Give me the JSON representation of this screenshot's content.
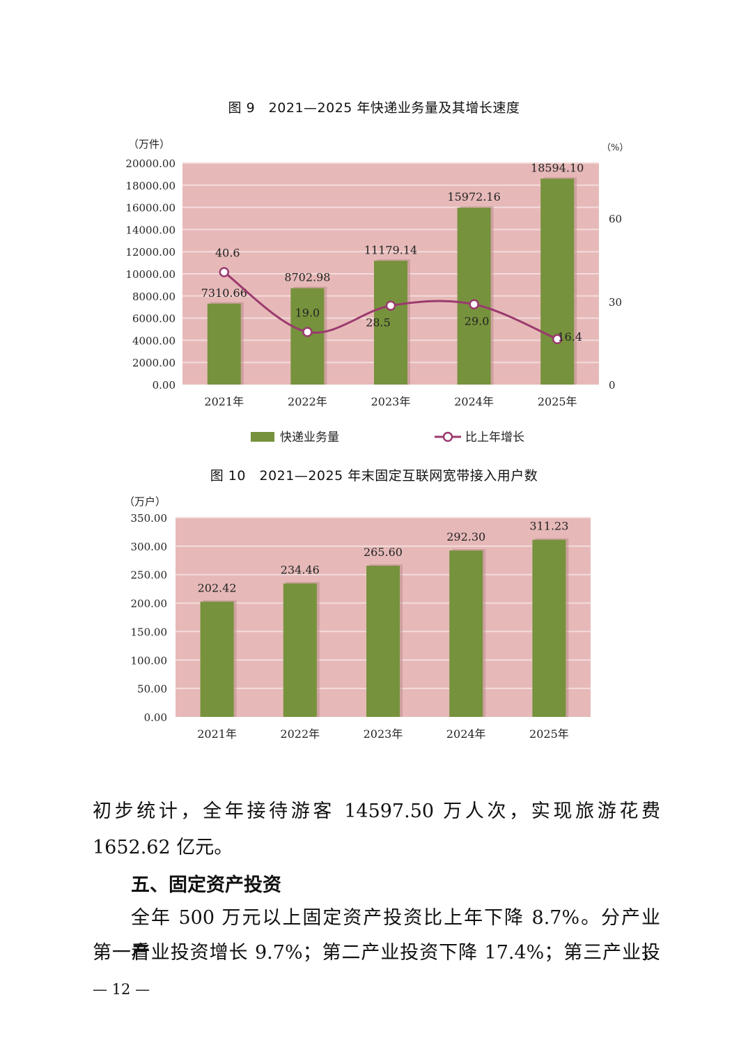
{
  "chart_data": [
    {
      "type": "bar",
      "title": "图 9　2021—2025 年快递业务量及其增长速度",
      "ylabel_left": "（万件）",
      "ylabel_right": "（%）",
      "categories": [
        "2021年",
        "2022年",
        "2023年",
        "2024年",
        "2025年"
      ],
      "ylim_left": [
        0,
        20000
      ],
      "ylim_right": [
        0,
        80
      ],
      "yticks_left": [
        "0.00",
        "2000.00",
        "4000.00",
        "6000.00",
        "8000.00",
        "10000.00",
        "12000.00",
        "14000.00",
        "16000.00",
        "18000.00",
        "20000.00"
      ],
      "yticks_right": [
        "0",
        "30",
        "60"
      ],
      "grid": true,
      "legend_position": "bottom",
      "series": [
        {
          "name": "快递业务量",
          "type": "bar",
          "axis": "left",
          "values": [
            7310.66,
            8702.98,
            11179.14,
            15972.16,
            18594.1
          ],
          "labels": [
            "7310.66",
            "8702.98",
            "11179.14",
            "15972.16",
            "18594.10"
          ],
          "color": "#76923c"
        },
        {
          "name": "比上年增长",
          "type": "line",
          "axis": "right",
          "values": [
            40.6,
            19.0,
            28.5,
            29.0,
            16.4
          ],
          "labels": [
            "40.6",
            "19.0",
            "28.5",
            "29.0",
            "16.4"
          ],
          "color": "#9b3a6e"
        }
      ],
      "plot_bg": "#e6b9b8"
    },
    {
      "type": "bar",
      "title": "图 10　2021—2025 年末固定互联网宽带接入用户数",
      "ylabel": "（万户）",
      "categories": [
        "2021年",
        "2022年",
        "2023年",
        "2024年",
        "2025年"
      ],
      "ylim": [
        0,
        350
      ],
      "yticks": [
        "0.00",
        "50.00",
        "100.00",
        "150.00",
        "200.00",
        "250.00",
        "300.00",
        "350.00"
      ],
      "grid": true,
      "series": [
        {
          "name": "",
          "values": [
            202.42,
            234.46,
            265.6,
            292.3,
            311.23
          ],
          "labels": [
            "202.42",
            "234.46",
            "265.60",
            "292.30",
            "311.23"
          ],
          "color": "#76923c"
        }
      ],
      "plot_bg": "#e6b9b8"
    }
  ],
  "text": {
    "para1_line1": "初步统计，全年接待游客 14597.50 万人次，实现旅游花费",
    "para1_line2": "1652.62 亿元。",
    "heading": "五、固定资产投资",
    "para2_line1": "全年 500 万元以上固定资产投资比上年下降 8.7%。分产业看，",
    "para2_line2": "第一产业投资增长 9.7%；第二产业投资下降 17.4%；第三产业投",
    "page_number": "— 12 —"
  }
}
